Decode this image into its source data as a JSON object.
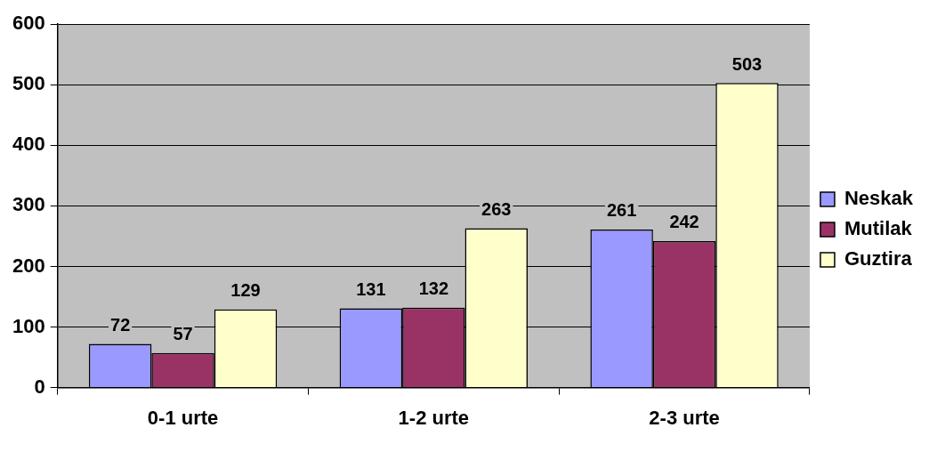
{
  "chart_data": {
    "type": "bar",
    "categories": [
      "0-1 urte",
      "1-2 urte",
      "2-3 urte"
    ],
    "series": [
      {
        "name": "Neskak",
        "color": "#9999ff",
        "values": [
          72,
          131,
          261
        ]
      },
      {
        "name": "Mutilak",
        "color": "#993366",
        "values": [
          57,
          132,
          242
        ]
      },
      {
        "name": "Guztira",
        "color": "#ffffcc",
        "values": [
          129,
          263,
          503
        ]
      }
    ],
    "ylim": [
      0,
      600
    ],
    "yticks": [
      0,
      100,
      200,
      300,
      400,
      500,
      600
    ],
    "grid": "y",
    "legend": "right",
    "data_labels": true
  }
}
